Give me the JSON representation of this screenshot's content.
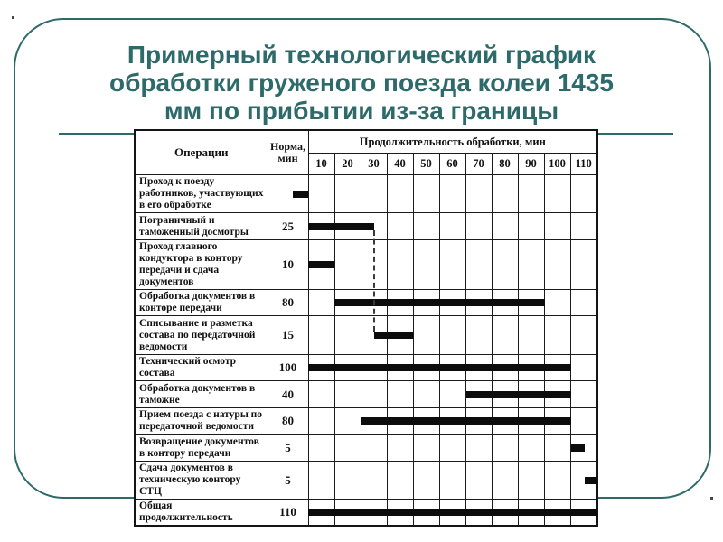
{
  "slide": {
    "title_lines": [
      "Примерный технологический график",
      "обработки груженого поезда колеи 1435",
      "мм по прибытии из-за границы"
    ],
    "accent_color": "#2e6a6a",
    "bar_color": "#0c0c0c"
  },
  "chart_data": {
    "type": "gantt-table",
    "title": "Примерный технологический график обработки груженого поезда колеи 1435 мм по прибытии из-за границы",
    "columns": {
      "operations": "Операции",
      "norm": "Норма, мин",
      "duration_header": "Продолжительность обработки, мин"
    },
    "time_ticks": [
      "10",
      "20",
      "30",
      "40",
      "50",
      "60",
      "70",
      "80",
      "90",
      "100",
      "110"
    ],
    "time_axis": {
      "min": 0,
      "max": 110,
      "unit": "мин",
      "grid": true
    },
    "tasks": [
      {
        "label": "Проход к поезду работников, участвующих в его обработке",
        "norm": "",
        "start": -6,
        "end": 0
      },
      {
        "label": "Пограничный и таможенный досмотры",
        "norm": "25",
        "start": 0,
        "end": 25
      },
      {
        "label": "Проход главного кондуктора в контору передачи и сдача документов",
        "norm": "10",
        "start": 0,
        "end": 10
      },
      {
        "label": "Обработка документов в конторе передачи",
        "norm": "80",
        "start": 10,
        "end": 90
      },
      {
        "label": "Списывание и разметка состава по передаточной ведомости",
        "norm": "15",
        "start": 25,
        "end": 40
      },
      {
        "label": "Технический осмотр состава",
        "norm": "100",
        "start": 0,
        "end": 100
      },
      {
        "label": "Обработка документов в таможне",
        "norm": "40",
        "start": 60,
        "end": 100
      },
      {
        "label": "Прием поезда с натуры по передаточной ведомости",
        "norm": "80",
        "start": 20,
        "end": 100
      },
      {
        "label": "Возвращение документов в контору передачи",
        "norm": "5",
        "start": 100,
        "end": 105
      },
      {
        "label": "Сдача документов в техническую контору СТЦ",
        "norm": "5",
        "start": 105,
        "end": 110
      },
      {
        "label": "Общая продолжительность",
        "norm": "110",
        "start": 0,
        "end": 110
      }
    ],
    "connector": {
      "time": 25,
      "from_task": 1,
      "to_task": 4
    }
  }
}
